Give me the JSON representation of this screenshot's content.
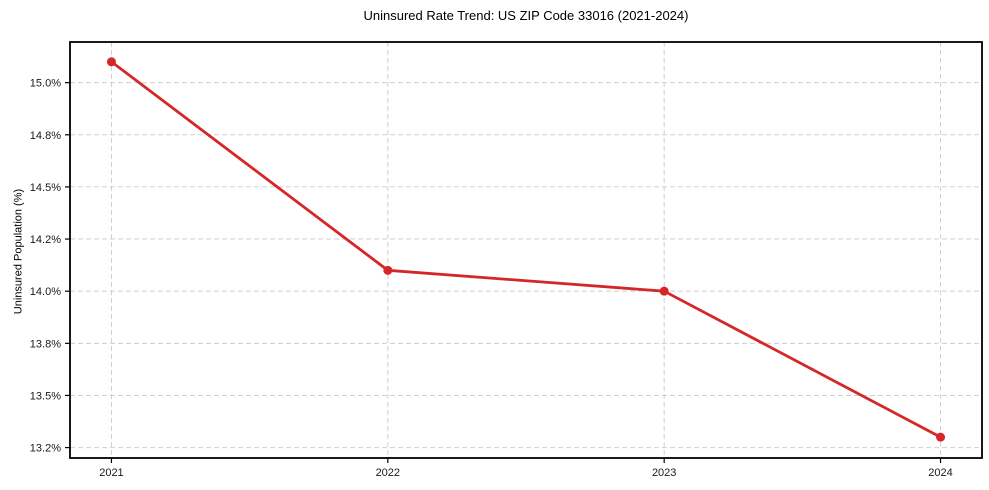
{
  "chart_data": {
    "type": "line",
    "title": "Uninsured Rate Trend: US ZIP Code 33016 (2021-2024)",
    "xlabel": "",
    "ylabel": "Uninsured Population (%)",
    "x": [
      2021,
      2022,
      2023,
      2024
    ],
    "x_tick_labels": [
      "2021",
      "2022",
      "2023",
      "2024"
    ],
    "values": [
      15.1,
      14.1,
      14.0,
      13.3
    ],
    "y_tick_values": [
      15.0,
      14.75,
      14.5,
      14.25,
      14.0,
      13.75,
      13.5,
      13.25
    ],
    "y_tick_labels": [
      "15.0%",
      "14.8%",
      "14.5%",
      "14.2%",
      "14.0%",
      "13.8%",
      "13.5%",
      "13.2%"
    ],
    "ylim": [
      13.2,
      15.195
    ],
    "xlim": [
      2020.85,
      2024.15
    ],
    "grid": true,
    "grid_style": "dashed",
    "legend": false,
    "marker": "circle",
    "colors": {
      "line": "#d62728",
      "marker": "#d62728",
      "grid": "#cfcfcf",
      "spine": "#000000",
      "tick_text": "#1a1a1a",
      "background": "#ffffff"
    }
  }
}
